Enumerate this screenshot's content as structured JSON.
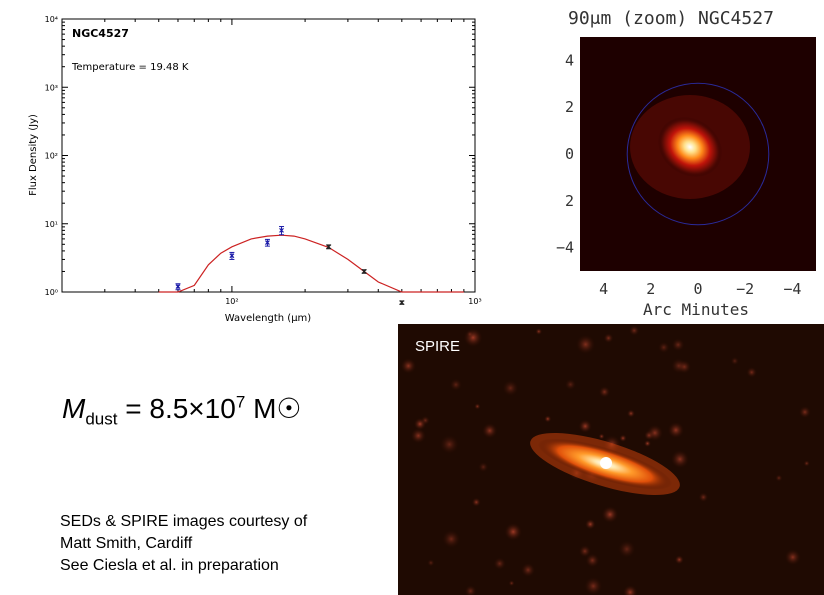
{
  "chart_data": [
    {
      "type": "scatter",
      "title": "NGC4527",
      "annotation": "Temperature = 19.48 K",
      "xlabel": "Wavelength (μm)",
      "ylabel": "Flux Density (Jy)",
      "xscale": "log",
      "yscale": "log",
      "xlim": [
        20,
        1000
      ],
      "ylim": [
        1,
        10000
      ],
      "x_ticks": [
        "10²",
        "10³"
      ],
      "y_ticks": [
        "10⁰",
        "10¹",
        "10²",
        "10³",
        "10⁴"
      ],
      "grid": false,
      "series": [
        {
          "kind": "points",
          "points": [
            {
              "x": 60,
              "y": 1.2,
              "err": 0.12,
              "color": "#1a1aa8"
            },
            {
              "x": 100,
              "y": 3.4,
              "err": 0.4,
              "color": "#1a1aa8"
            },
            {
              "x": 140,
              "y": 5.3,
              "err": 0.6,
              "color": "#1a1aa8"
            },
            {
              "x": 160,
              "y": 8.0,
              "err": 1.1,
              "color": "#1a1aa8"
            },
            {
              "x": 250,
              "y": 4.6,
              "err": 0.3,
              "color": "#222222"
            },
            {
              "x": 350,
              "y": 2.0,
              "err": 0.12,
              "color": "#222222"
            },
            {
              "x": 500,
              "y": 0.7,
              "err": 0.04,
              "color": "#222222"
            }
          ]
        },
        {
          "kind": "model",
          "color": "#cc2222",
          "curve": [
            {
              "x": 50,
              "y": 0.01
            },
            {
              "x": 60,
              "y": 0.3
            },
            {
              "x": 70,
              "y": 1.25
            },
            {
              "x": 80,
              "y": 2.5
            },
            {
              "x": 90,
              "y": 3.7
            },
            {
              "x": 100,
              "y": 4.6
            },
            {
              "x": 120,
              "y": 6.0
            },
            {
              "x": 140,
              "y": 6.6
            },
            {
              "x": 160,
              "y": 6.8
            },
            {
              "x": 180,
              "y": 6.6
            },
            {
              "x": 200,
              "y": 6.0
            },
            {
              "x": 250,
              "y": 4.5
            },
            {
              "x": 300,
              "y": 3.0
            },
            {
              "x": 350,
              "y": 2.0
            },
            {
              "x": 400,
              "y": 1.4
            },
            {
              "x": 500,
              "y": 0.7
            },
            {
              "x": 600,
              "y": 0.35
            },
            {
              "x": 700,
              "y": 0.2
            },
            {
              "x": 800,
              "y": 0.1
            },
            {
              "x": 900,
              "y": 0.02
            }
          ]
        }
      ]
    },
    {
      "type": "heatmap",
      "title": "90μm (zoom) NGC4527",
      "xlabel": "Arc Minutes",
      "x_ticks": [
        "4",
        "2",
        "0",
        "−2",
        "−4"
      ],
      "y_ticks": [
        "4",
        "2",
        "0",
        "2",
        "−4"
      ],
      "xlim": [
        5,
        -5
      ],
      "ylim": [
        5,
        -5
      ],
      "aperture_radius": 3,
      "aperture_color": "#2a2a9a",
      "colormap": "hot"
    }
  ],
  "spire_label": "SPIRE",
  "mass": {
    "symbol": "M",
    "subscript": "dust",
    "equals": "= 8.5×10",
    "exponent": "7",
    "unit": "M",
    "sun_symbol": "☉"
  },
  "credits": [
    "SEDs & SPIRE images courtesy of",
    "Matt Smith, Cardiff",
    "See Ciesla et al. in preparation"
  ]
}
